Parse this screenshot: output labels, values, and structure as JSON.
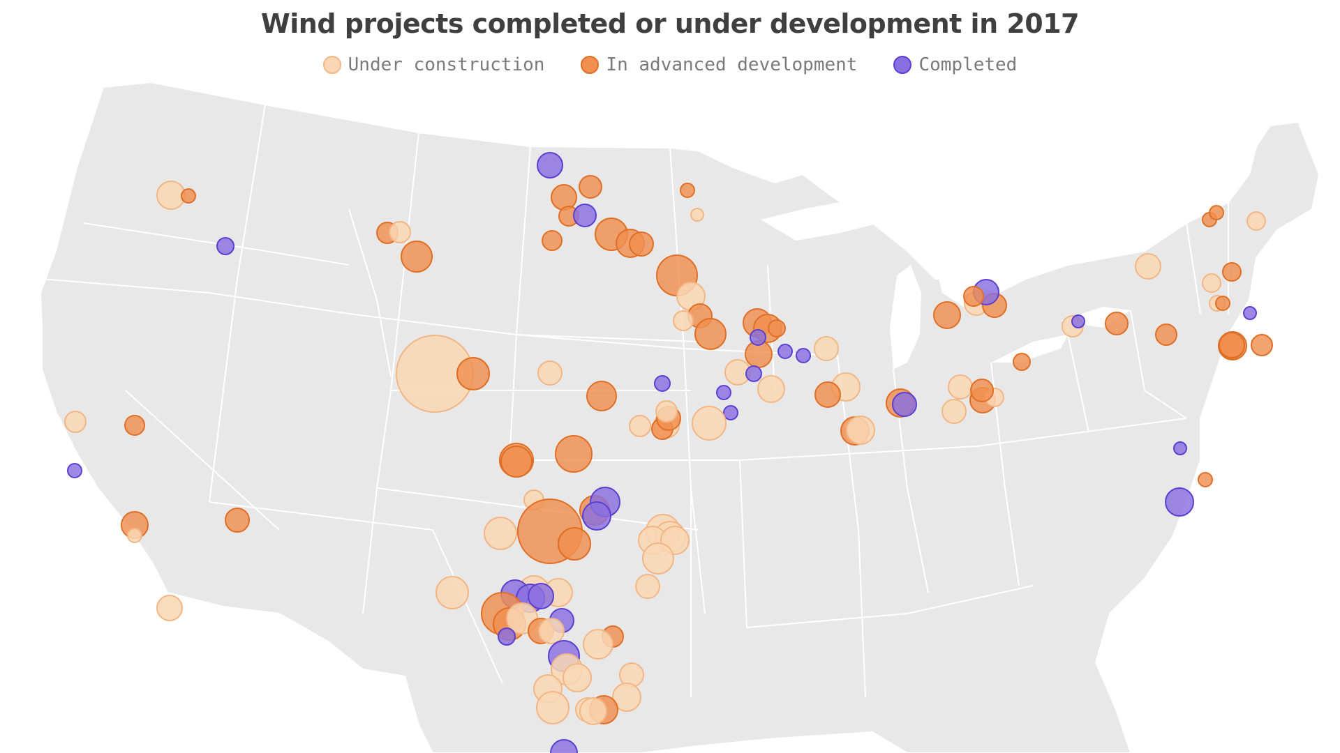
{
  "title": "Wind projects completed or under development in 2017",
  "legend": [
    {
      "label": "Under construction",
      "color": "#f9d7b4"
    },
    {
      "label": "In advanced development",
      "color": "#f08f4f"
    },
    {
      "label": "Completed",
      "color": "#8a6fe0"
    }
  ],
  "map": {
    "land_color": "#e8e8e8",
    "border_color": "#ffffff",
    "region": "contiguous United States"
  },
  "colors": {
    "under_construction_fill": "#f9d7b4",
    "under_construction_stroke": "#f2b684",
    "advanced_fill": "#f08f4f",
    "advanced_stroke": "#e06f26",
    "completed_fill": "#8a6fe0",
    "completed_stroke": "#5b3fd1"
  }
}
